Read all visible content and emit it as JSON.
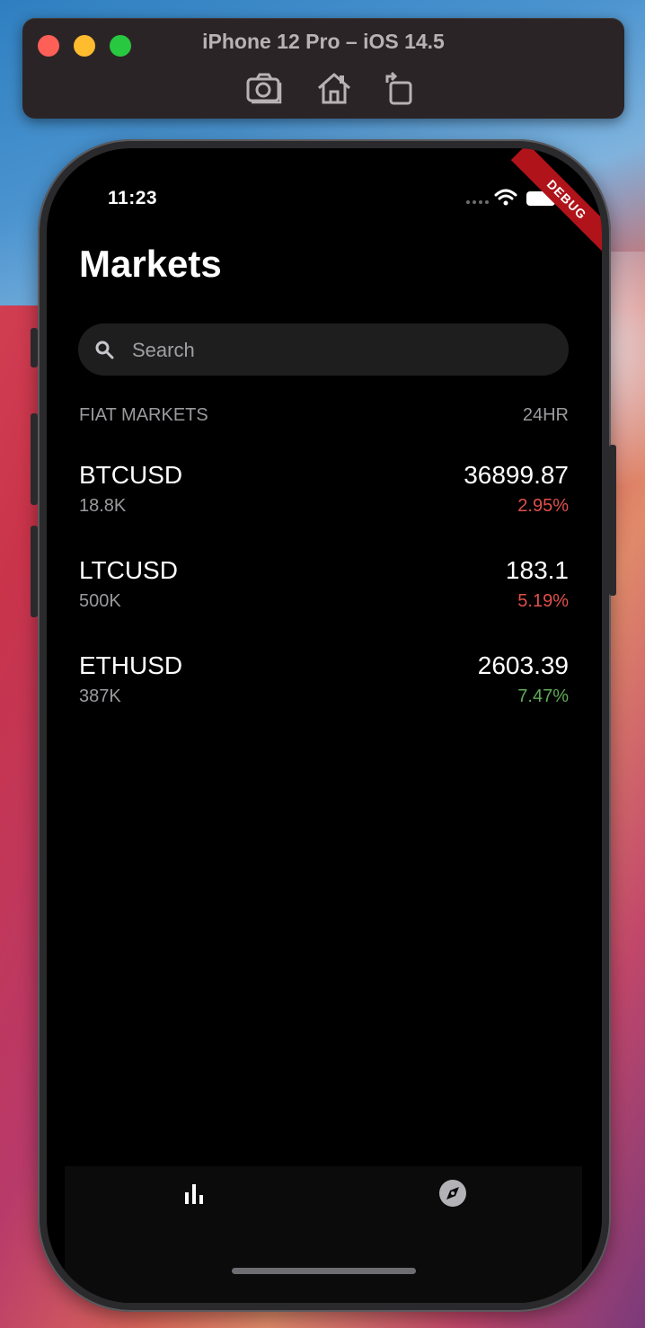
{
  "colors": {
    "negative": "#e0504b",
    "positive": "#5faa55",
    "debug_ribbon": "#b0131a"
  },
  "simulator": {
    "title": "iPhone 12 Pro – iOS 14.5",
    "buttons": [
      "camera-icon",
      "home-icon",
      "rotate-icon"
    ]
  },
  "status_bar": {
    "time": "11:23",
    "icons": [
      "cellular-signal-icon",
      "wifi-icon",
      "battery-icon"
    ]
  },
  "debug_banner": "DEBUG",
  "page": {
    "title": "Markets"
  },
  "search": {
    "placeholder": "Search",
    "value": ""
  },
  "section": {
    "title": "FIAT MARKETS",
    "column_label": "24HR"
  },
  "markets": [
    {
      "pair": "BTCUSD",
      "volume": "18.8K",
      "price": "36899.87",
      "change": "2.95%",
      "trend": "negative"
    },
    {
      "pair": "LTCUSD",
      "volume": "500K",
      "price": "183.1",
      "change": "5.19%",
      "trend": "negative"
    },
    {
      "pair": "ETHUSD",
      "volume": "387K",
      "price": "2603.39",
      "change": "7.47%",
      "trend": "positive"
    }
  ],
  "tabs": [
    {
      "name": "markets",
      "icon": "bar-chart-icon",
      "active": true
    },
    {
      "name": "explore",
      "icon": "compass-icon",
      "active": false
    }
  ]
}
